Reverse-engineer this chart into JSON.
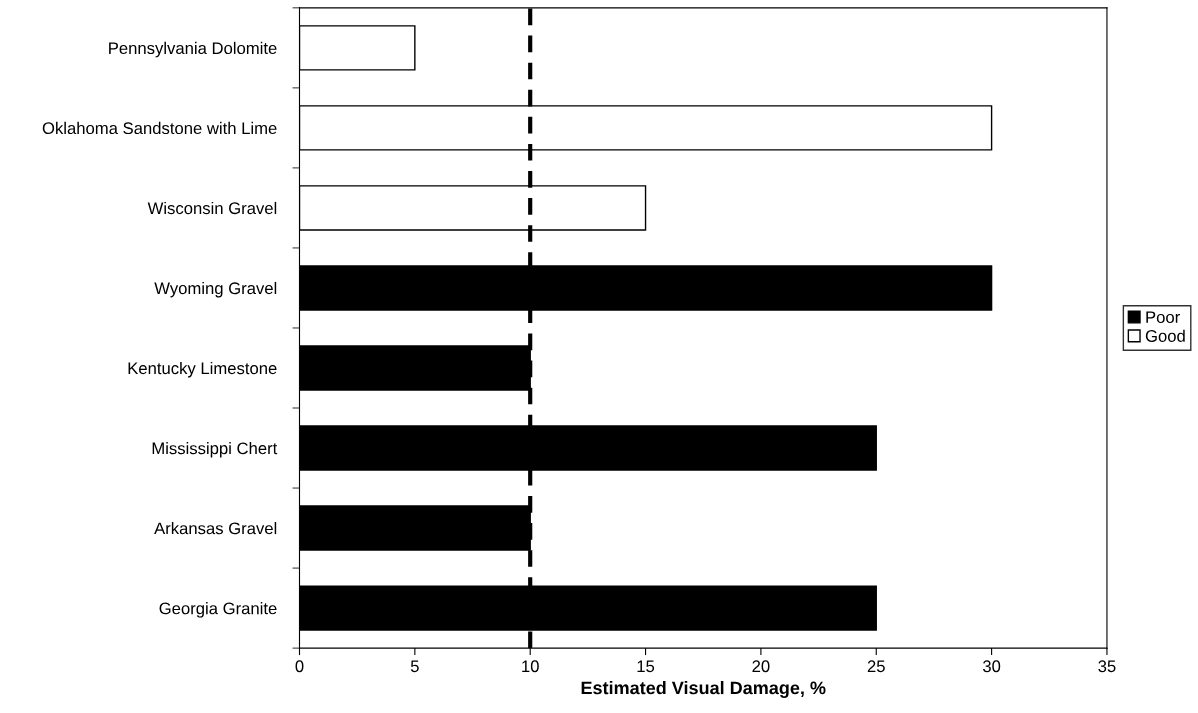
{
  "chart_data": {
    "type": "bar",
    "orientation": "horizontal",
    "xlabel": "Estimated Visual Damage, %",
    "categories": [
      "Pennsylvania Dolomite",
      "Oklahoma Sandstone with Lime",
      "Wisconsin Gravel",
      "Wyoming Gravel",
      "Kentucky Limestone",
      "Mississippi Chert",
      "Arkansas Gravel",
      "Georgia Granite"
    ],
    "series": [
      {
        "name": "Poor",
        "color": "#000000",
        "values": [
          null,
          null,
          null,
          30,
          10,
          25,
          10,
          25
        ]
      },
      {
        "name": "Good",
        "color": "#ffffff",
        "values": [
          5,
          30,
          15,
          null,
          null,
          null,
          null,
          null
        ]
      }
    ],
    "xlim": [
      0,
      35
    ],
    "xticks": [
      0,
      5,
      10,
      15,
      20,
      25,
      30,
      35
    ],
    "ref_lines": [
      {
        "axis": "x",
        "value": 10,
        "color": "#000000",
        "line_style": "dashed"
      }
    ],
    "grid": false,
    "legend": "right"
  }
}
